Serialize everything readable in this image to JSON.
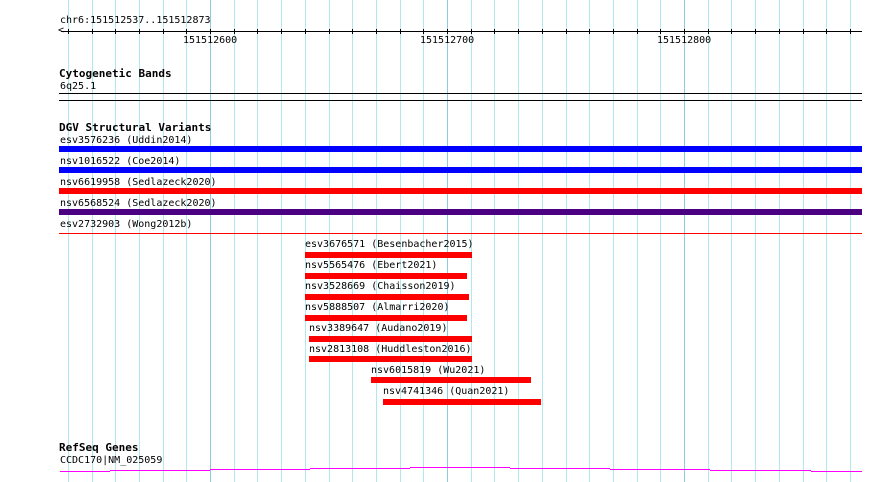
{
  "ruler": {
    "location": "chr6:151512537..151512873",
    "start": 151512537,
    "end": 151512873,
    "ticks": [
      "151512600",
      "151512700",
      "151512800"
    ]
  },
  "cytogenetic": {
    "title": "Cytogenetic Bands",
    "band": "6q25.1"
  },
  "dgv": {
    "title": "DGV Structural Variants",
    "full_width": [
      {
        "label": "esv3576236 (Uddin2014)",
        "color": "#0000ff"
      },
      {
        "label": "nsv1016522 (Coe2014)",
        "color": "#0000ff"
      },
      {
        "label": "nsv6619958 (Sedlazeck2020)",
        "color": "#ff0000"
      },
      {
        "label": "nsv6568524 (Sedlazeck2020)",
        "color": "#4b0082"
      },
      {
        "label": "esv2732903 (Wong2012b)",
        "color": "#ff0000"
      }
    ],
    "partial": [
      {
        "label": "esv3676571 (Besenbacher2015)",
        "color": "#ff0000"
      },
      {
        "label": "nsv5565476 (Ebert2021)",
        "color": "#ff0000"
      },
      {
        "label": "nsv3528669 (Chaisson2019)",
        "color": "#ff0000"
      },
      {
        "label": "nsv5888507 (Almarri2020)",
        "color": "#ff0000"
      },
      {
        "label": "nsv3389647 (Audano2019)",
        "color": "#ff0000"
      },
      {
        "label": "nsv2813108 (Huddleston2016)",
        "color": "#ff0000"
      },
      {
        "label": "nsv6015819 (Wu2021)",
        "color": "#ff0000"
      },
      {
        "label": "nsv4741346 (Quan2021)",
        "color": "#ff0000"
      }
    ]
  },
  "refseq": {
    "title": "RefSeq Genes",
    "gene": "CCDC170|NM_025059",
    "color": "#ff00ff"
  }
}
